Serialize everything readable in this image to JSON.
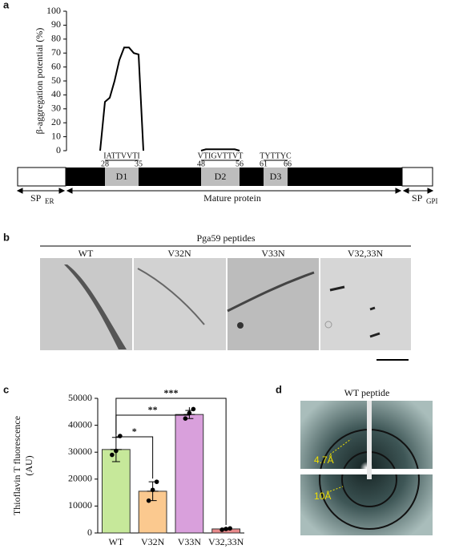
{
  "panels": {
    "a": "a",
    "b": "b",
    "c": "c",
    "d": "d"
  },
  "protein": {
    "sp_er": "SP",
    "sp_er_sub": "ER",
    "mature": "Mature protein",
    "sp_gpi": "SP",
    "sp_gpi_sub": "GPI"
  },
  "micrographs": {
    "title": "Pga59 peptides",
    "labels": [
      "WT",
      "V32N",
      "V33N",
      "V32,33N"
    ]
  },
  "diffraction": {
    "title": "WT peptide",
    "rings": [
      "4.7Å",
      "10Å"
    ]
  },
  "chart_data": [
    {
      "type": "line",
      "ylabel": "β-aggregation potential (%)",
      "x": [
        27,
        28,
        29,
        30,
        31,
        32,
        33,
        34,
        35,
        36,
        null,
        48,
        49,
        55,
        56
      ],
      "series": [
        {
          "color": "#000000",
          "values": [
            0,
            35,
            38,
            50,
            65,
            74,
            74,
            70,
            69,
            0,
            null,
            0,
            1,
            1,
            0
          ]
        }
      ],
      "xlim": [
        20,
        75
      ],
      "ylim": [
        0,
        100
      ],
      "yticks": [
        0,
        10,
        20,
        30,
        40,
        50,
        60,
        70,
        80,
        90,
        100
      ],
      "domains": [
        {
          "label": "D1",
          "sequence": "IATTVVTI",
          "start": 28,
          "end": 35
        },
        {
          "label": "D2",
          "sequence": "VTIGVTTVT",
          "start": 48,
          "end": 56
        },
        {
          "label": "D3",
          "sequence": "TYTTYC",
          "start": 61,
          "end": 66
        }
      ]
    },
    {
      "type": "bar",
      "ylabel": [
        "Thioflavin T fluorescence",
        "(AU)"
      ],
      "categories": [
        "WT",
        "V32N",
        "V33N",
        "V32,33N"
      ],
      "values": [
        31000,
        15500,
        44000,
        1500
      ],
      "errors": [
        4500,
        3500,
        1500,
        300
      ],
      "points": [
        [
          29000,
          30500,
          36000
        ],
        [
          12000,
          16000,
          19000
        ],
        [
          42500,
          44500,
          46000
        ],
        [
          1200,
          1500,
          1700
        ]
      ],
      "colors": [
        "#c6e89a",
        "#fbc98f",
        "#d9a0dc",
        "#e8898a"
      ],
      "significance": [
        "*",
        "**",
        "***"
      ],
      "ylim": [
        0,
        50000
      ],
      "yticks": [
        0,
        10000,
        20000,
        30000,
        40000,
        50000
      ]
    }
  ]
}
